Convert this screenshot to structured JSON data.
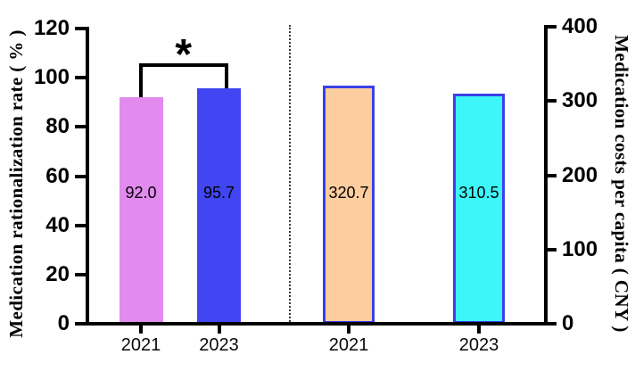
{
  "chart_data": {
    "type": "bar",
    "dual_axis": true,
    "grid": false,
    "legend": null,
    "left_axis": {
      "label": "Medication rationalization rate ( % )",
      "unit": "%",
      "range": [
        0,
        120
      ],
      "ticks": [
        0,
        20,
        40,
        60,
        80,
        100,
        120
      ]
    },
    "right_axis": {
      "label": "Medication costs per capita ( CNY )",
      "unit": "CNY",
      "range": [
        0,
        400
      ],
      "ticks": [
        0,
        100,
        200,
        300,
        400
      ]
    },
    "series": [
      {
        "panel": "rationalization-rate",
        "axis": "left",
        "category": "2021",
        "value": 92.0,
        "label": "92.0",
        "fill": "#e18bee",
        "stroke": null
      },
      {
        "panel": "rationalization-rate",
        "axis": "left",
        "category": "2023",
        "value": 95.7,
        "label": "95.7",
        "fill": "#4146f2",
        "stroke": null
      },
      {
        "panel": "costs-per-capita",
        "axis": "right",
        "category": "2021",
        "value": 320.7,
        "label": "320.7",
        "fill": "#fccd9e",
        "stroke": "#3b40e8"
      },
      {
        "panel": "costs-per-capita",
        "axis": "right",
        "category": "2023",
        "value": 310.5,
        "label": "310.5",
        "fill": "#3ef5f9",
        "stroke": "#3b40e8"
      }
    ],
    "significance": {
      "symbol": "*",
      "panel": "rationalization-rate",
      "compares": [
        "2021",
        "2023"
      ]
    }
  },
  "colors": {
    "axis": "#000000",
    "bar_2021_rate": "#e18bee",
    "bar_2023_rate": "#4146f2",
    "bar_2021_cost_fill": "#fccd9e",
    "bar_2023_cost_fill": "#3ef5f9",
    "cost_bar_border": "#3b40e8"
  }
}
